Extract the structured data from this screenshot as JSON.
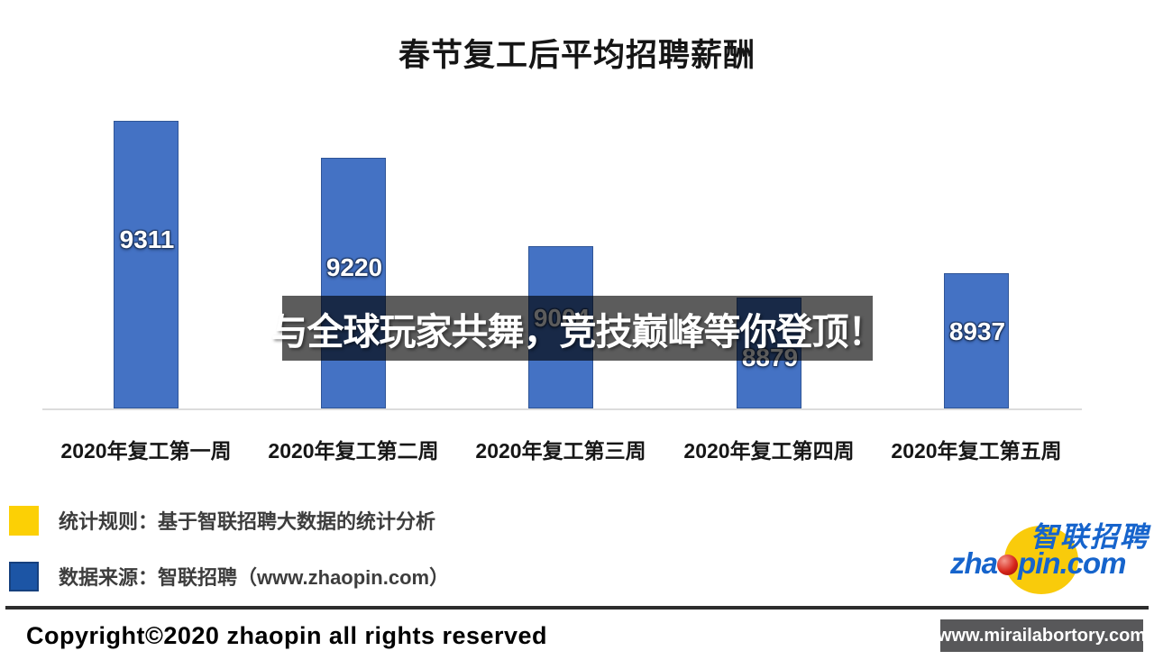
{
  "chart_data": {
    "type": "bar",
    "title": "春节复工后平均招聘薪酬",
    "categories": [
      "2020年复工第一周",
      "2020年复工第二周",
      "2020年复工第三周",
      "2020年复工第四周",
      "2020年复工第五周"
    ],
    "values": [
      9311,
      9220,
      9004,
      8879,
      8937
    ],
    "bar_color": "#4472C4",
    "value_label_color": "#FFFFFF",
    "ylim": [
      8606,
      9400
    ],
    "grid": false,
    "legend_position": "below-left",
    "xlabel": "",
    "ylabel": ""
  },
  "watermark": {
    "text": "与全球玩家共舞，竞技巅峰等你登顶！"
  },
  "legend": {
    "items": [
      {
        "swatch_color": "#FCD005",
        "label": "统计规则：基于智联招聘大数据的统计分析"
      },
      {
        "swatch_color": "#1C55A5",
        "label": "数据来源：智联招聘（www.zhaopin.com）"
      }
    ]
  },
  "logo": {
    "cn_text": "智联招聘",
    "en_prefix": "zha",
    "en_suffix": "pin.com",
    "accent_yellow": "#F9CB0B",
    "accent_blue": "#1664CC",
    "accent_red": "#D6251A"
  },
  "footer": {
    "copyright": "Copyright©2020 zhaopin all rights reserved",
    "badge": "www.mirailabortory.com"
  }
}
